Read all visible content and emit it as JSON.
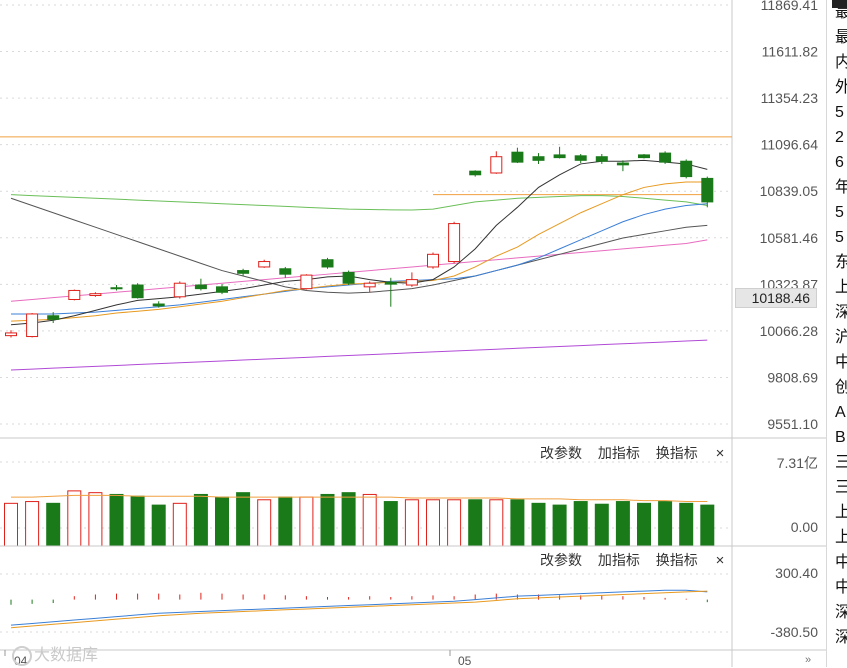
{
  "price_axis": {
    "ticks": [
      "11869.41",
      "11611.82",
      "11354.23",
      "11096.64",
      "10839.05",
      "10581.46",
      "10323.87",
      "10066.28",
      "9808.69",
      "9551.10"
    ],
    "current_label": "10188.46"
  },
  "volume_panel": {
    "toolbar": [
      "改参数",
      "加指标",
      "换指标"
    ],
    "close": "×",
    "axis_top": "7.31亿",
    "axis_bottom": "0.00"
  },
  "macd_panel": {
    "toolbar": [
      "改参数",
      "加指标",
      "换指标"
    ],
    "close": "×",
    "axis_top": "300.40",
    "axis_bottom": "-380.50"
  },
  "date_labels": [
    "04",
    "05"
  ],
  "watermark": "大数据库",
  "nav_arrows": "»",
  "side_chars": [
    "最",
    "最",
    "内",
    "外",
    "5",
    "2",
    "6",
    "年",
    "5",
    "5",
    "东",
    "上",
    "深",
    "沪",
    "中",
    "创",
    "A",
    "B",
    "三",
    "三",
    "上",
    "上",
    "中",
    "中",
    "深",
    "深"
  ],
  "colors": {
    "up": "#e0201a",
    "down": "#1a7a1a",
    "ma5": "#333333",
    "ma10": "#e89a20",
    "ma20": "#3b7fd6",
    "ma60": "#555555",
    "line_green": "#6bbf59",
    "line_pink": "#e86cc0",
    "line_purple": "#b14ad6",
    "line_orange": "#f0a040"
  },
  "chart_data": {
    "type": "candlestick",
    "candles": [
      {
        "o": 10040,
        "c": 10055,
        "h": 10070,
        "l": 10030
      },
      {
        "o": 10035,
        "c": 10160,
        "h": 10165,
        "l": 10030
      },
      {
        "o": 10150,
        "c": 10130,
        "h": 10170,
        "l": 10110
      },
      {
        "o": 10240,
        "c": 10290,
        "h": 10295,
        "l": 10235
      },
      {
        "o": 10262,
        "c": 10272,
        "h": 10280,
        "l": 10255
      },
      {
        "o": 10305,
        "c": 10300,
        "h": 10320,
        "l": 10290
      },
      {
        "o": 10320,
        "c": 10250,
        "h": 10330,
        "l": 10245
      },
      {
        "o": 10215,
        "c": 10205,
        "h": 10230,
        "l": 10195
      },
      {
        "o": 10255,
        "c": 10330,
        "h": 10340,
        "l": 10245
      },
      {
        "o": 10320,
        "c": 10300,
        "h": 10355,
        "l": 10290
      },
      {
        "o": 10310,
        "c": 10280,
        "h": 10325,
        "l": 10270
      },
      {
        "o": 10400,
        "c": 10385,
        "h": 10410,
        "l": 10370
      },
      {
        "o": 10420,
        "c": 10450,
        "h": 10460,
        "l": 10415
      },
      {
        "o": 10410,
        "c": 10380,
        "h": 10420,
        "l": 10360
      },
      {
        "o": 10300,
        "c": 10375,
        "h": 10380,
        "l": 10295
      },
      {
        "o": 10460,
        "c": 10420,
        "h": 10470,
        "l": 10410
      },
      {
        "o": 10390,
        "c": 10330,
        "h": 10400,
        "l": 10320
      },
      {
        "o": 10310,
        "c": 10330,
        "h": 10340,
        "l": 10280
      },
      {
        "o": 10335,
        "c": 10325,
        "h": 10360,
        "l": 10200
      },
      {
        "o": 10320,
        "c": 10350,
        "h": 10390,
        "l": 10310
      },
      {
        "o": 10420,
        "c": 10490,
        "h": 10500,
        "l": 10410
      },
      {
        "o": 10450,
        "c": 10660,
        "h": 10670,
        "l": 10440
      },
      {
        "o": 10950,
        "c": 10930,
        "h": 10955,
        "l": 10920
      },
      {
        "o": 10940,
        "c": 11030,
        "h": 11060,
        "l": 10935
      },
      {
        "o": 11055,
        "c": 11000,
        "h": 11080,
        "l": 10995
      },
      {
        "o": 11030,
        "c": 11010,
        "h": 11050,
        "l": 10990
      },
      {
        "o": 11040,
        "c": 11025,
        "h": 11085,
        "l": 11020
      },
      {
        "o": 11035,
        "c": 11010,
        "h": 11045,
        "l": 10995
      },
      {
        "o": 11030,
        "c": 11005,
        "h": 11045,
        "l": 10990
      },
      {
        "o": 10995,
        "c": 10985,
        "h": 11010,
        "l": 10950
      },
      {
        "o": 11040,
        "c": 11025,
        "h": 11045,
        "l": 11020
      },
      {
        "o": 11050,
        "c": 11000,
        "h": 11060,
        "l": 10990
      },
      {
        "o": 11005,
        "c": 10920,
        "h": 11015,
        "l": 10910
      },
      {
        "o": 10910,
        "c": 10780,
        "h": 10920,
        "l": 10750
      }
    ],
    "ma5": [
      10100,
      10110,
      10125,
      10150,
      10180,
      10210,
      10235,
      10245,
      10255,
      10270,
      10285,
      10300,
      10320,
      10340,
      10350,
      10365,
      10370,
      10350,
      10335,
      10330,
      10350,
      10420,
      10520,
      10650,
      10750,
      10860,
      10930,
      10990,
      11005,
      11005,
      11010,
      11000,
      10990,
      10960
    ],
    "ma10": [
      10120,
      10125,
      10130,
      10140,
      10150,
      10165,
      10175,
      10185,
      10200,
      10215,
      10230,
      10250,
      10270,
      10290,
      10300,
      10315,
      10325,
      10330,
      10335,
      10340,
      10345,
      10370,
      10420,
      10480,
      10530,
      10600,
      10660,
      10720,
      10770,
      10820,
      10860,
      10880,
      10890,
      10890
    ],
    "ma20": [
      10160,
      10160,
      10160,
      10165,
      10170,
      10180,
      10190,
      10200,
      10210,
      10225,
      10240,
      10255,
      10270,
      10285,
      10300,
      10310,
      10320,
      10330,
      10340,
      10345,
      10350,
      10355,
      10370,
      10400,
      10430,
      10470,
      10520,
      10570,
      10620,
      10670,
      10710,
      10740,
      10760,
      10770
    ],
    "ma60": [
      10800,
      10760,
      10720,
      10680,
      10640,
      10600,
      10560,
      10520,
      10480,
      10440,
      10400,
      10370,
      10340,
      10310,
      10290,
      10280,
      10275,
      10280,
      10290,
      10300,
      10320,
      10345,
      10370,
      10400,
      10430,
      10460,
      10490,
      10520,
      10550,
      10580,
      10600,
      10620,
      10640,
      10650
    ],
    "green_line": [
      10820,
      10815,
      10810,
      10805,
      10800,
      10795,
      10790,
      10785,
      10780,
      10775,
      10770,
      10765,
      10760,
      10755,
      10750,
      10745,
      10740,
      10738,
      10736,
      10735,
      10740,
      10760,
      10780,
      10790,
      10800,
      10805,
      10810,
      10815,
      10815,
      10810,
      10800,
      10790,
      10780,
      10760
    ],
    "pink_line": [
      10230,
      10240,
      10250,
      10260,
      10270,
      10280,
      10290,
      10300,
      10310,
      10320,
      10330,
      10340,
      10350,
      10360,
      10370,
      10380,
      10390,
      10400,
      10410,
      10420,
      10430,
      10440,
      10450,
      10460,
      10470,
      10480,
      10490,
      10500,
      10510,
      10520,
      10530,
      10540,
      10550,
      10570
    ],
    "purple_line": [
      9850,
      9855,
      9860,
      9865,
      9870,
      9875,
      9880,
      9885,
      9890,
      9895,
      9900,
      9905,
      9910,
      9915,
      9920,
      9925,
      9930,
      9935,
      9940,
      9945,
      9950,
      9955,
      9960,
      9965,
      9970,
      9975,
      9980,
      9985,
      9990,
      9995,
      10000,
      10005,
      10010,
      10015
    ],
    "orange_hline": 11140,
    "orange_segment": {
      "from": 20,
      "to": 34,
      "value": 10820
    },
    "volume": [
      0.48,
      0.5,
      0.48,
      0.62,
      0.6,
      0.58,
      0.56,
      0.46,
      0.48,
      0.58,
      0.55,
      0.6,
      0.52,
      0.55,
      0.55,
      0.58,
      0.6,
      0.58,
      0.5,
      0.52,
      0.52,
      0.52,
      0.52,
      0.52,
      0.52,
      0.48,
      0.46,
      0.5,
      0.47,
      0.5,
      0.48,
      0.5,
      0.48,
      0.46
    ],
    "volume_avg": [
      0.55,
      0.55,
      0.56,
      0.57,
      0.57,
      0.57,
      0.56,
      0.56,
      0.56,
      0.56,
      0.55,
      0.55,
      0.55,
      0.55,
      0.55,
      0.55,
      0.55,
      0.55,
      0.55,
      0.54,
      0.54,
      0.54,
      0.54,
      0.54,
      0.53,
      0.53,
      0.53,
      0.52,
      0.52,
      0.52,
      0.51,
      0.51,
      0.5,
      0.5
    ],
    "macd": [
      -60,
      -50,
      -40,
      40,
      60,
      70,
      70,
      70,
      60,
      80,
      70,
      60,
      60,
      50,
      40,
      30,
      30,
      40,
      30,
      40,
      50,
      40,
      60,
      70,
      60,
      60,
      50,
      50,
      50,
      40,
      30,
      20,
      10,
      -30
    ],
    "dif": [
      -300,
      -280,
      -260,
      -240,
      -220,
      -200,
      -180,
      -160,
      -150,
      -140,
      -130,
      -120,
      -110,
      -100,
      -90,
      -80,
      -70,
      -60,
      -50,
      -40,
      -30,
      -20,
      0,
      20,
      40,
      50,
      60,
      70,
      80,
      90,
      100,
      110,
      110,
      90
    ],
    "dea": [
      -330,
      -310,
      -290,
      -270,
      -250,
      -230,
      -210,
      -190,
      -175,
      -160,
      -150,
      -140,
      -130,
      -120,
      -110,
      -100,
      -90,
      -80,
      -70,
      -60,
      -50,
      -40,
      -30,
      -10,
      10,
      20,
      30,
      40,
      50,
      60,
      70,
      80,
      90,
      100
    ],
    "price_range": [
      9551.1,
      11869.41
    ],
    "macd_range": [
      -380.5,
      300.4
    ],
    "volume_max": 0.9
  }
}
